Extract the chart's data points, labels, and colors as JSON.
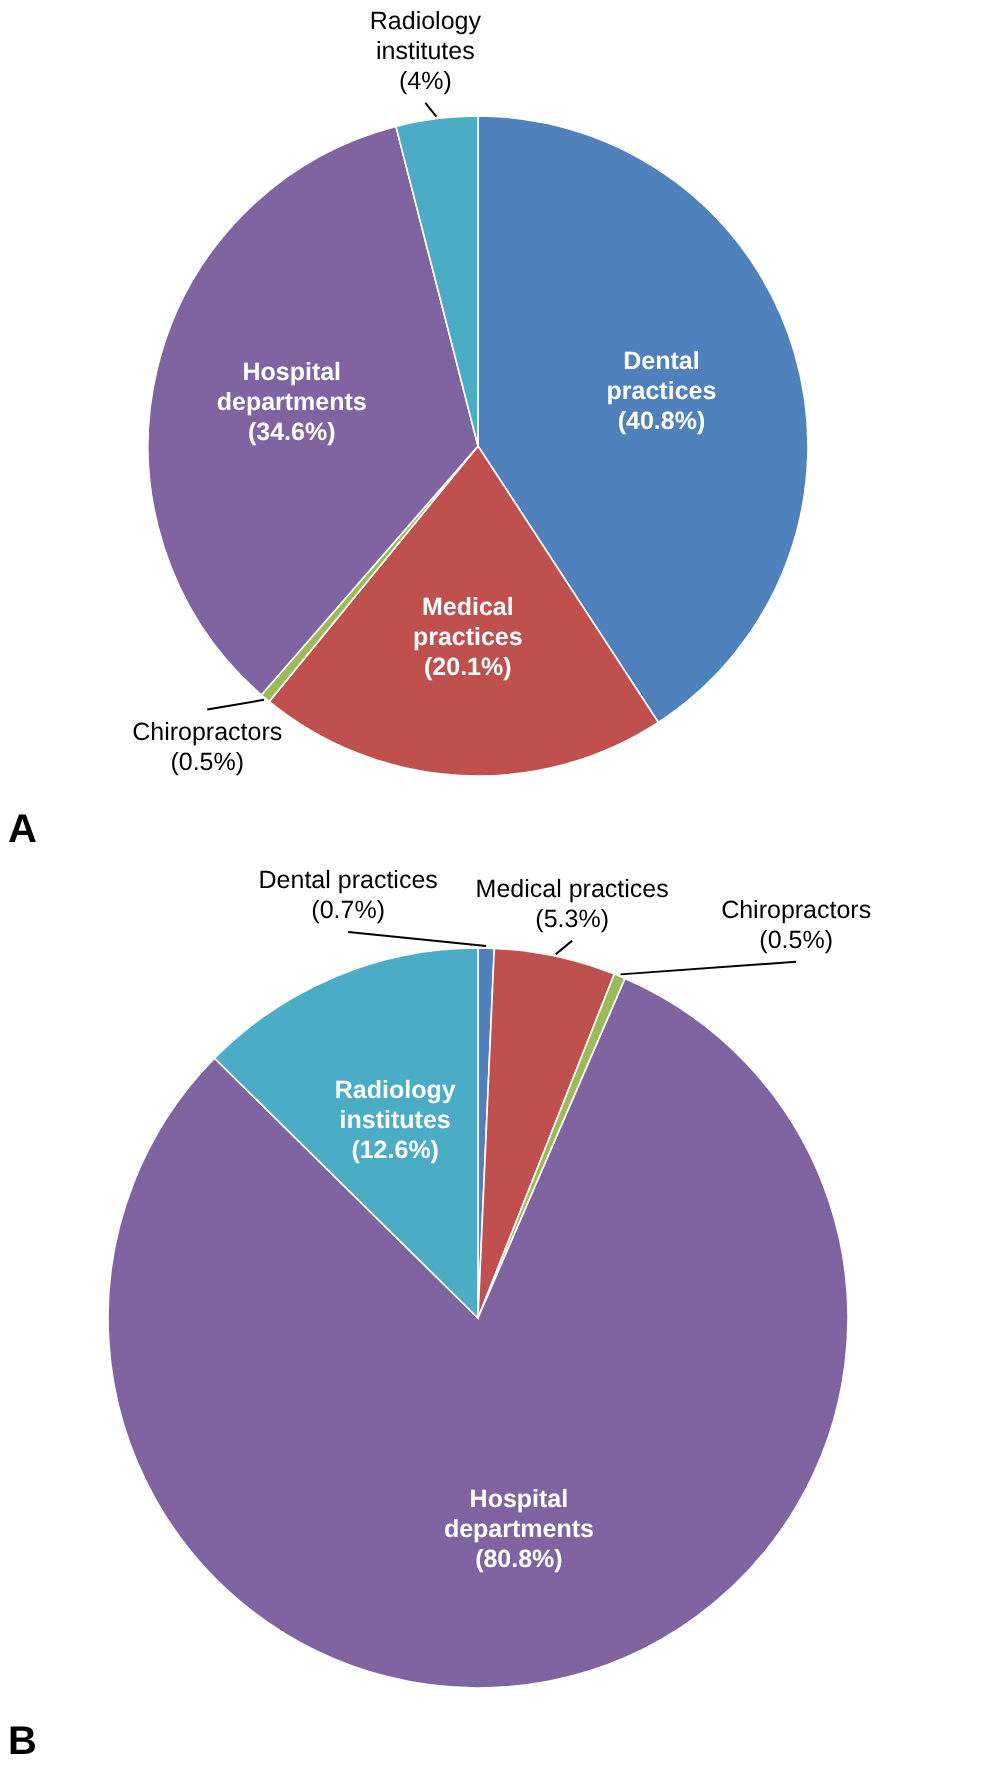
{
  "chart_data": [
    {
      "type": "pie",
      "title": "A",
      "categories": [
        "Dental practices",
        "Medical practices",
        "Chiropractors",
        "Hospital departments",
        "Radiology institutes"
      ],
      "values": [
        40.8,
        20.1,
        0.5,
        34.6,
        4
      ],
      "value_labels": [
        "(40.8%)",
        "(20.1%)",
        "(0.5%)",
        "(34.6%)",
        "(4%)"
      ],
      "colors": [
        "#4f81bd",
        "#c0504d",
        "#9bbb59",
        "#8064a2",
        "#4bacc6"
      ]
    },
    {
      "type": "pie",
      "title": "B",
      "categories": [
        "Dental practices",
        "Medical practices",
        "Chiropractors",
        "Hospital departments",
        "Radiology institutes"
      ],
      "values": [
        0.7,
        5.3,
        0.5,
        80.8,
        12.6
      ],
      "value_labels": [
        "(0.7%)",
        "(5.3%)",
        "(0.5%)",
        "(80.8%)",
        "(12.6%)"
      ],
      "colors": [
        "#4f81bd",
        "#c0504d",
        "#9bbb59",
        "#8064a2",
        "#4bacc6"
      ]
    }
  ]
}
